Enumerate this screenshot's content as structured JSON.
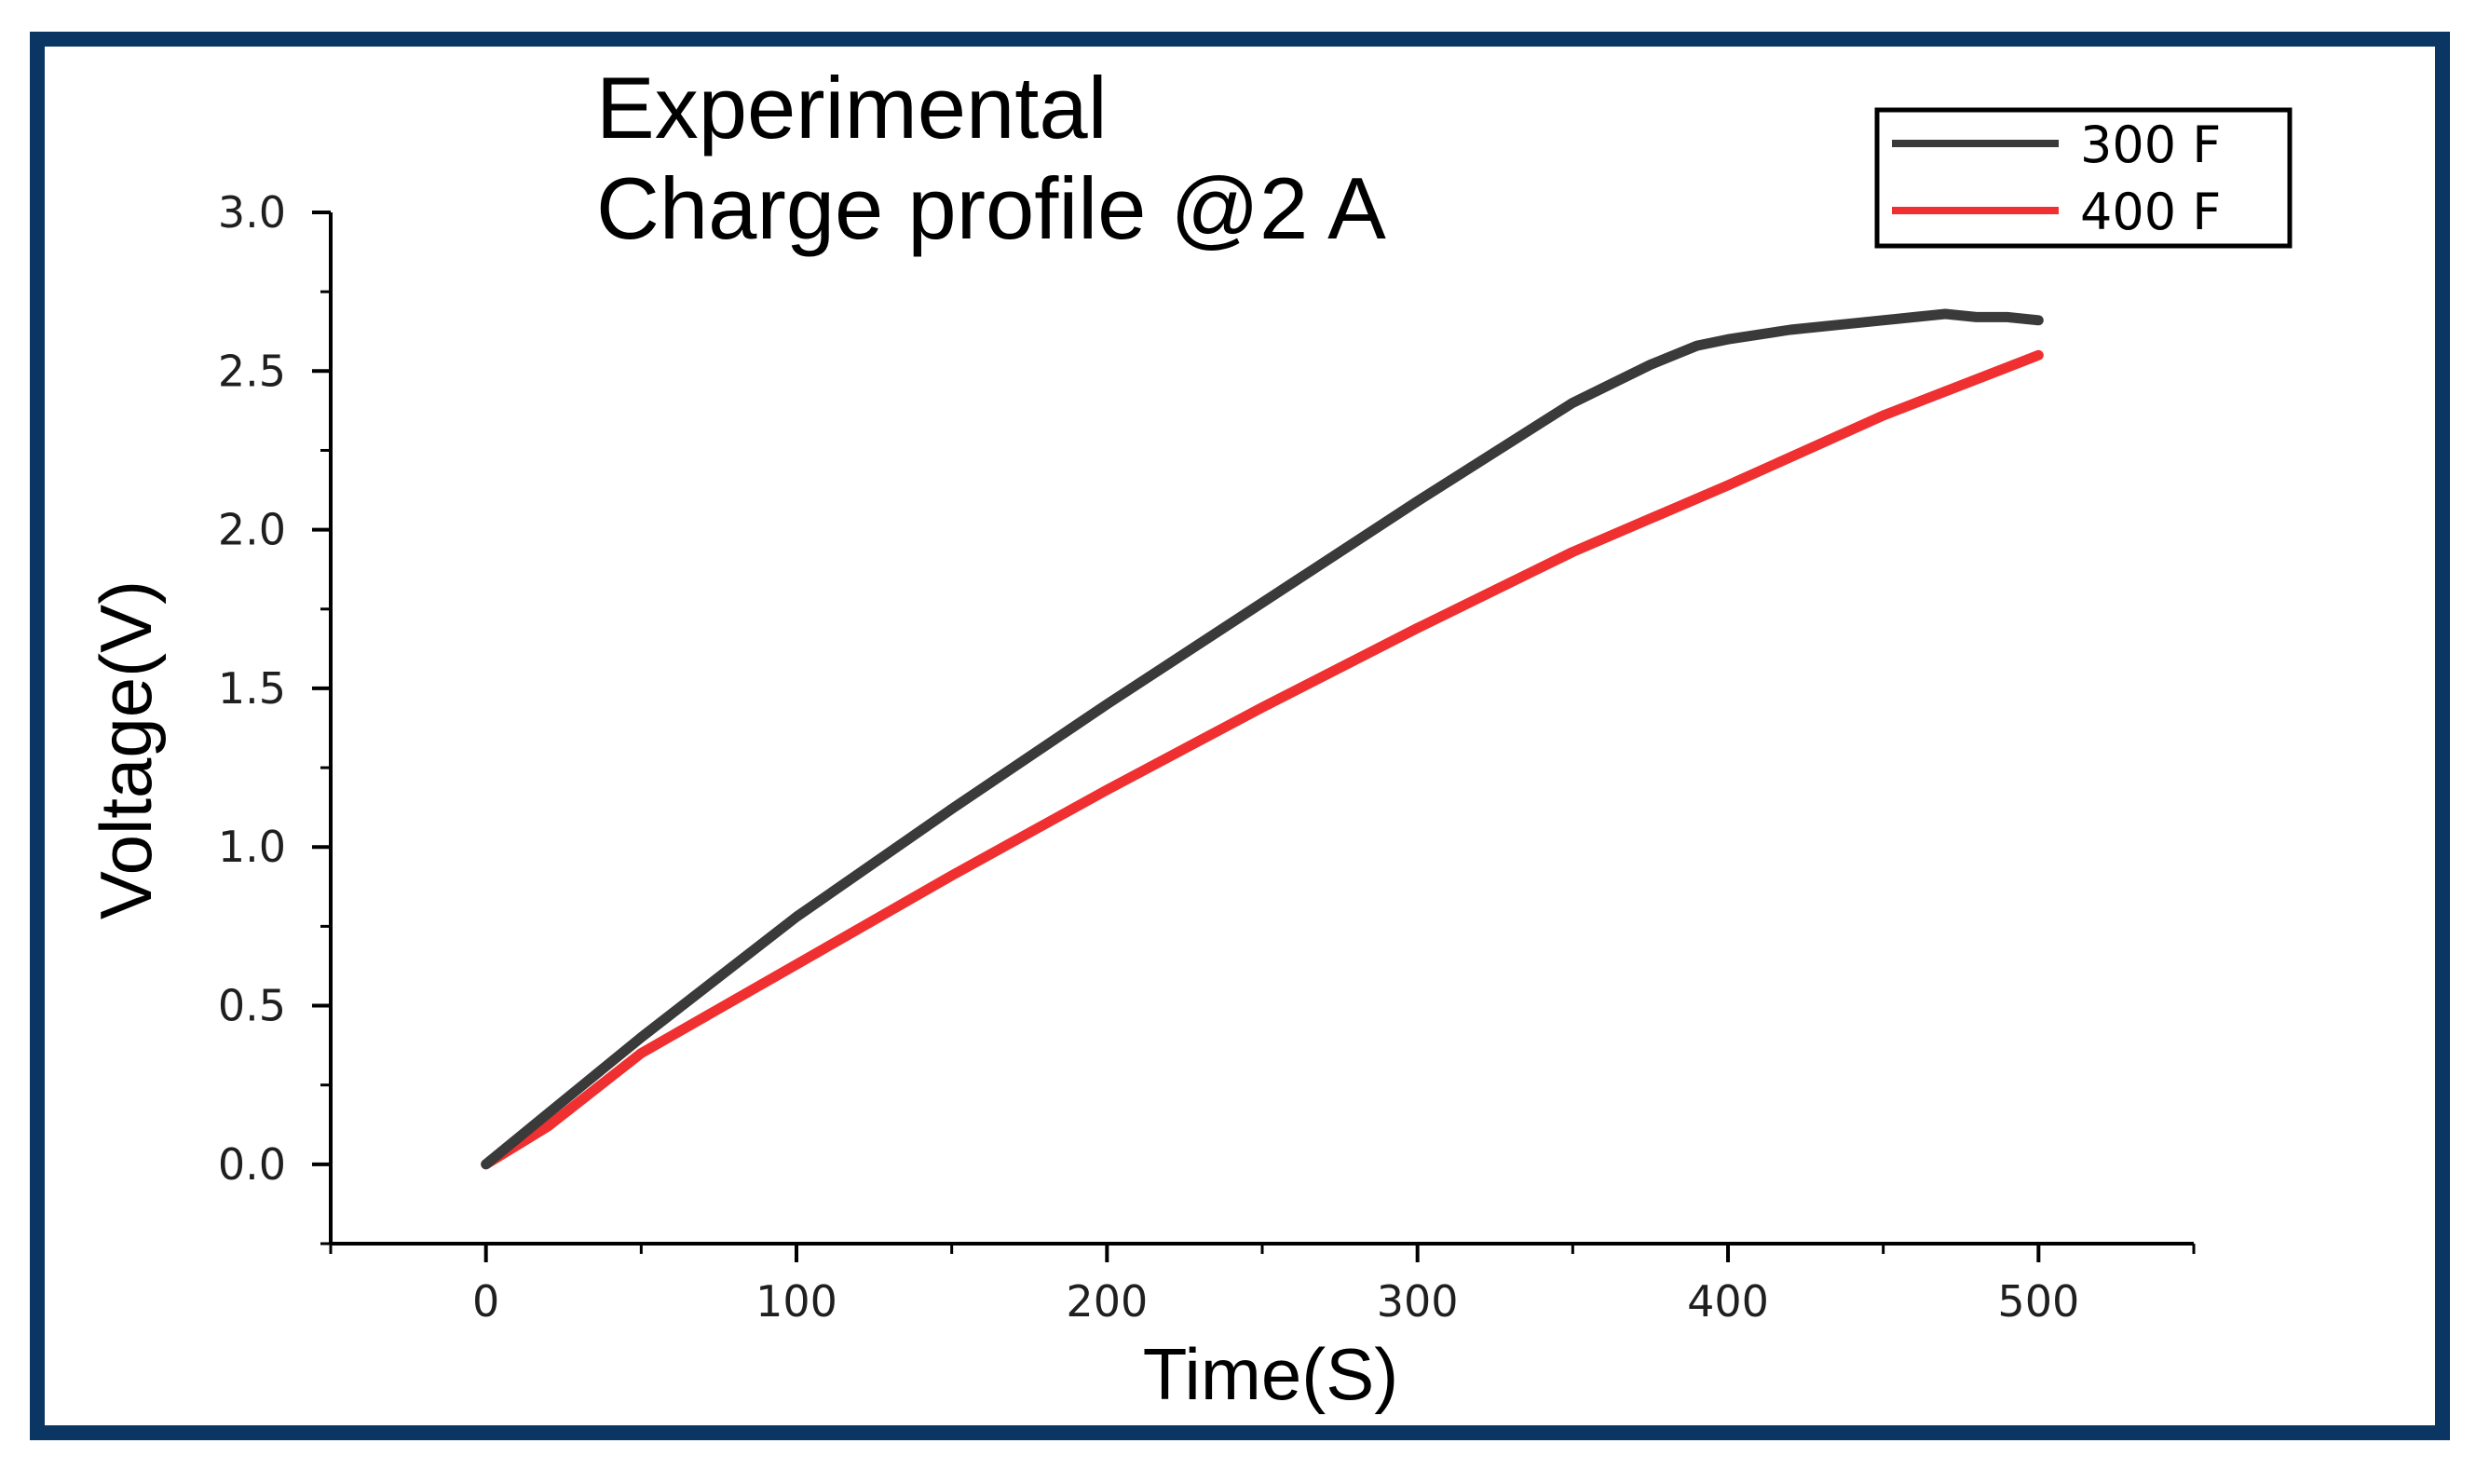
{
  "chart_data": {
    "type": "line",
    "title": [
      "Experimental",
      "Charge profile @2 A"
    ],
    "xlabel": "Time(S)",
    "ylabel": "Voltage(V)",
    "xlim": [
      -50,
      550
    ],
    "ylim": [
      -0.25,
      3.0
    ],
    "xticks": [
      0,
      100,
      200,
      300,
      400,
      500
    ],
    "xtick_labels": [
      "0",
      "100",
      "200",
      "300",
      "400",
      "500"
    ],
    "yticks": [
      0.0,
      0.5,
      1.0,
      1.5,
      2.0,
      2.5,
      3.0
    ],
    "ytick_labels": [
      "0.0",
      "0.5",
      "1.0",
      "1.5",
      "2.0",
      "2.5",
      "3.0"
    ],
    "legend_position": "top-right",
    "series": [
      {
        "name": "300 F",
        "color": "#3a3a3a",
        "x": [
          0,
          20,
          50,
          100,
          150,
          200,
          250,
          300,
          350,
          375,
          390,
          400,
          420,
          440,
          460,
          470,
          480,
          490,
          500
        ],
        "y": [
          0.0,
          0.16,
          0.4,
          0.78,
          1.12,
          1.45,
          1.77,
          2.09,
          2.4,
          2.52,
          2.58,
          2.6,
          2.63,
          2.65,
          2.67,
          2.68,
          2.67,
          2.67,
          2.66
        ]
      },
      {
        "name": "400 F",
        "color": "#f03030",
        "x": [
          0,
          20,
          50,
          100,
          150,
          200,
          250,
          300,
          350,
          400,
          450,
          500
        ],
        "y": [
          0.0,
          0.12,
          0.35,
          0.63,
          0.91,
          1.18,
          1.44,
          1.69,
          1.93,
          2.14,
          2.36,
          2.55
        ]
      }
    ]
  }
}
